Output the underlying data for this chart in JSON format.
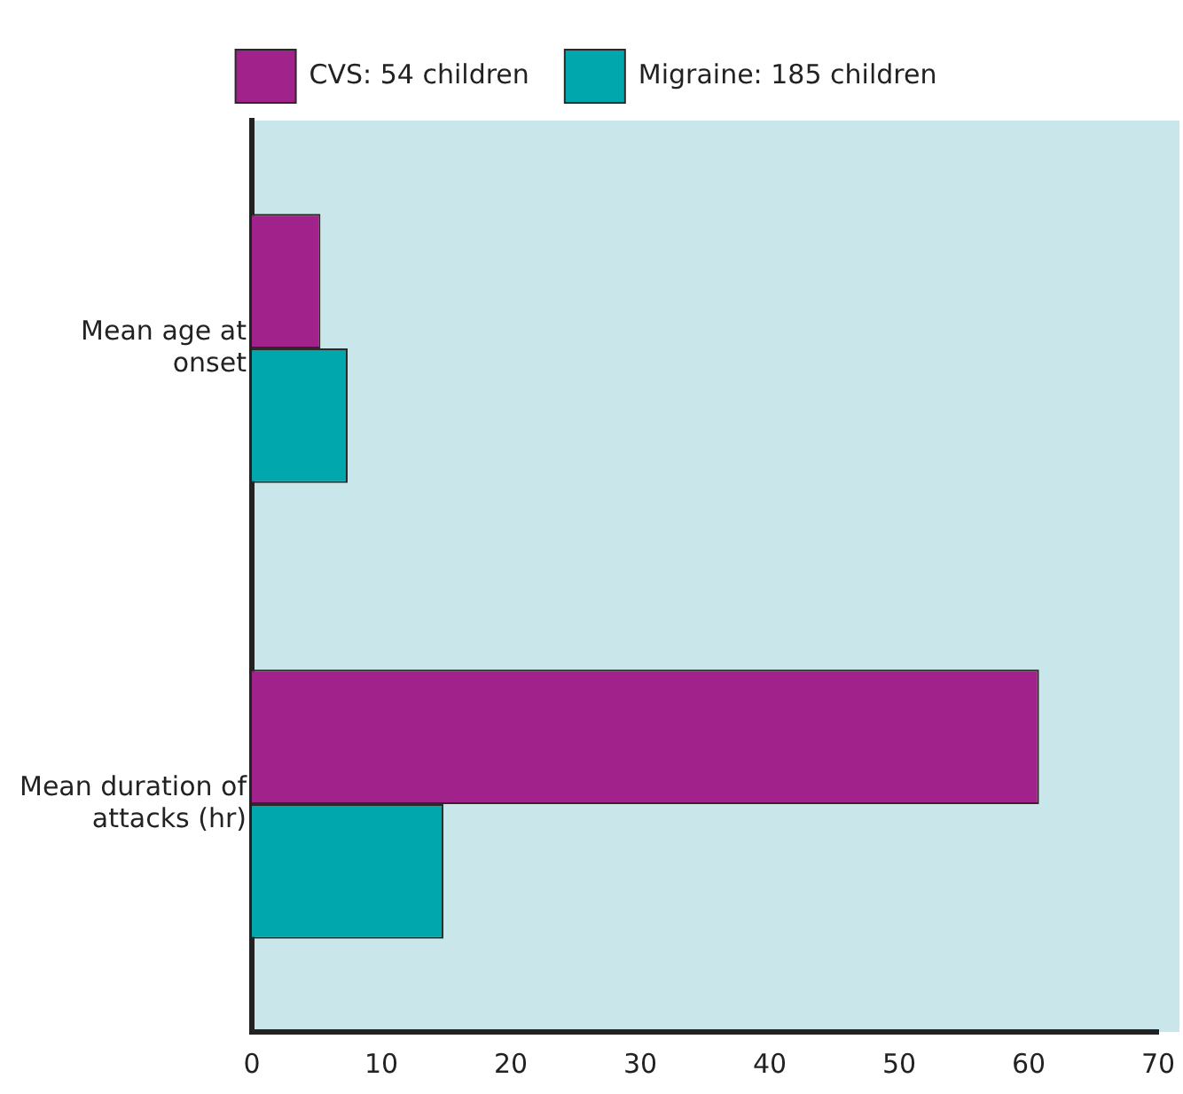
{
  "chart_data": {
    "type": "bar",
    "orientation": "horizontal",
    "categories": [
      "Mean age at onset",
      "Mean duration of attacks (hr)"
    ],
    "series": [
      {
        "name": "CVS: 54 children",
        "color": "#a0228a",
        "values": [
          5.3,
          60.8
        ]
      },
      {
        "name": "Migraine: 185 children",
        "color": "#00a8ae",
        "values": [
          7.4,
          14.8
        ]
      }
    ],
    "xlim": [
      0,
      70
    ],
    "xticks": [
      0,
      10,
      20,
      30,
      40,
      50,
      60,
      70
    ],
    "grid": false,
    "legend": "top"
  }
}
